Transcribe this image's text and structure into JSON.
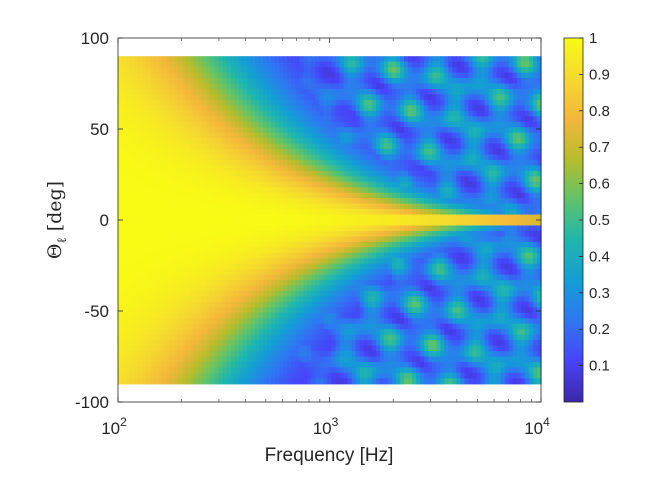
{
  "chart_data": {
    "type": "heatmap",
    "xlabel": "Frequency [Hz]",
    "ylabel": "Θ",
    "ylabel_subscript": "ℓ",
    "ylabel_unit": "[deg]",
    "x_scale": "log",
    "xlim": [
      100,
      10000
    ],
    "ylim": [
      -100,
      100
    ],
    "data_extent": {
      "x": [
        100,
        10000
      ],
      "y": [
        -90,
        90
      ]
    },
    "x_ticks": [
      {
        "value": 100,
        "base": "10",
        "exp": "2"
      },
      {
        "value": 1000,
        "base": "10",
        "exp": "3"
      },
      {
        "value": 10000,
        "base": "10",
        "exp": "4"
      }
    ],
    "y_ticks": [
      {
        "value": 100,
        "label": "100"
      },
      {
        "value": 50,
        "label": "50"
      },
      {
        "value": 0,
        "label": "0"
      },
      {
        "value": -50,
        "label": "-50"
      },
      {
        "value": -100,
        "label": "-100"
      }
    ],
    "grid": false,
    "colormap": "parula",
    "colorbar": {
      "min": 0,
      "max": 1,
      "ticks": [
        {
          "value": 1,
          "label": "1"
        },
        {
          "value": 0.9,
          "label": "0.9"
        },
        {
          "value": 0.8,
          "label": "0.8"
        },
        {
          "value": 0.7,
          "label": "0.7"
        },
        {
          "value": 0.6,
          "label": "0.6"
        },
        {
          "value": 0.5,
          "label": "0.5"
        },
        {
          "value": 0.4,
          "label": "0.4"
        },
        {
          "value": 0.3,
          "label": "0.3"
        },
        {
          "value": 0.2,
          "label": "0.2"
        },
        {
          "value": 0.1,
          "label": "0.1"
        }
      ]
    },
    "colors": [
      "#3e26a8",
      "#4743f8",
      "#2f77f2",
      "#139ed5",
      "#1fb6ae",
      "#5ec36b",
      "#b7bd2c",
      "#f4b73b",
      "#f5d92f",
      "#f9fb15"
    ]
  }
}
